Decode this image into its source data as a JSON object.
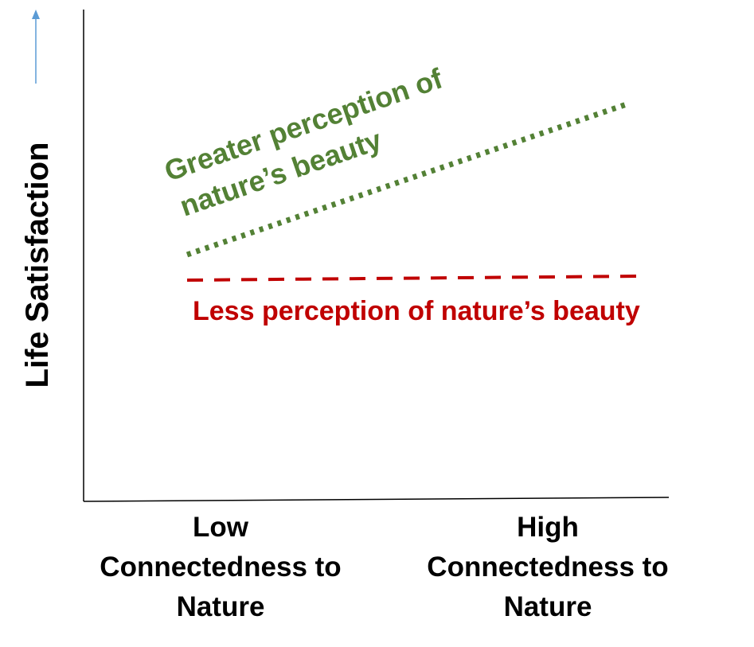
{
  "y_axis_label": "Life Satisfaction",
  "annotations": {
    "greater": [
      "Greater perception of",
      "nature’s beauty"
    ],
    "less": "Less perception of nature’s beauty"
  },
  "x_labels": {
    "low": [
      "Low",
      "Connectedness to",
      "Nature"
    ],
    "high": [
      "High",
      "Connectedness to",
      "Nature"
    ]
  }
}
